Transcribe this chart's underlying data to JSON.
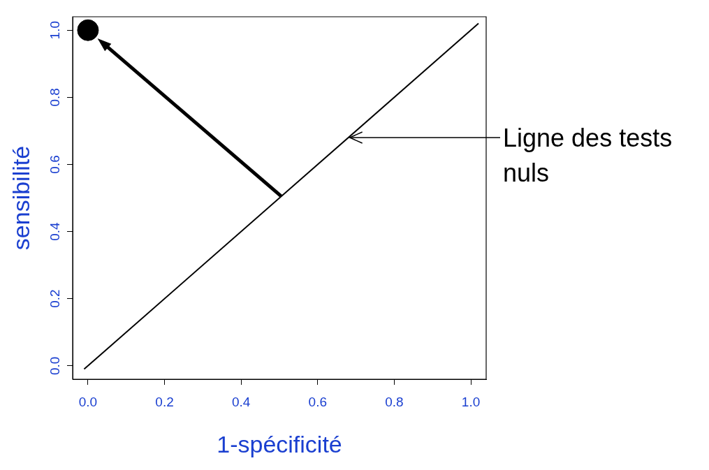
{
  "chart_data": {
    "type": "line",
    "xlabel": "1-spécificité",
    "ylabel": "sensibilité",
    "xlim": [
      -0.04,
      1.04
    ],
    "ylim": [
      -0.04,
      1.04
    ],
    "xticks": [
      {
        "value": 0,
        "label": "0.0"
      },
      {
        "value": 0.2,
        "label": "0.2"
      },
      {
        "value": 0.4,
        "label": "0.4"
      },
      {
        "value": 0.6,
        "label": "0.6"
      },
      {
        "value": 0.8,
        "label": "0.8"
      },
      {
        "value": 1,
        "label": "1.0"
      }
    ],
    "yticks": [
      {
        "value": 0,
        "label": "0.0"
      },
      {
        "value": 0.2,
        "label": "0.2"
      },
      {
        "value": 0.4,
        "label": "0.4"
      },
      {
        "value": 0.6,
        "label": "0.6"
      },
      {
        "value": 0.8,
        "label": "0.8"
      },
      {
        "value": 1,
        "label": "1.0"
      }
    ],
    "grid": false,
    "legend": false,
    "series": [
      {
        "type": "line",
        "x": [
          -0.01,
          1.02
        ],
        "values": [
          -0.01,
          1.02
        ],
        "color": "#000000",
        "marker": "none"
      },
      {
        "type": "scatter",
        "x": [
          0
        ],
        "values": [
          1
        ],
        "color": "#000000",
        "marker": "circle"
      }
    ],
    "annotations": [
      {
        "text": "Ligne des tests nuls",
        "x": 0.68,
        "y": 0.68
      }
    ]
  }
}
